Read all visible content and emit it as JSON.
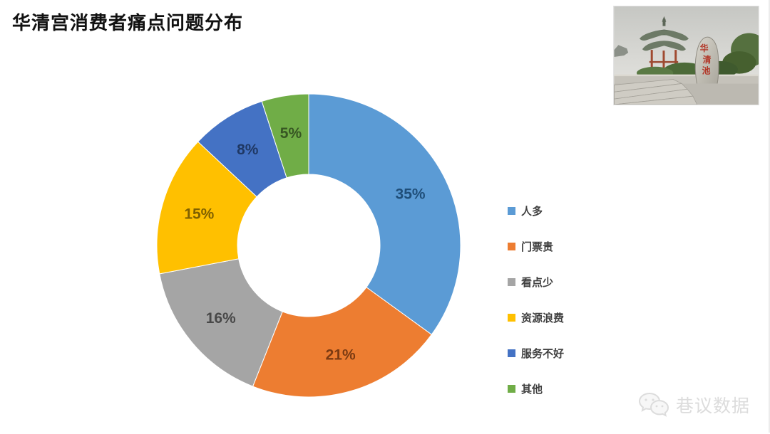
{
  "title": "华清宫消费者痛点问题分布",
  "chart_data": {
    "type": "pie",
    "subtype": "donut",
    "title": "华清宫消费者痛点问题分布",
    "categories": [
      "人多",
      "门票贵",
      "看点少",
      "资源浪费",
      "服务不好",
      "其他"
    ],
    "values": [
      35,
      21,
      16,
      15,
      8,
      5
    ],
    "labels": [
      "35%",
      "21%",
      "16%",
      "15%",
      "8%",
      "5%"
    ],
    "colors": [
      "#5B9BD5",
      "#ED7D31",
      "#A5A5A5",
      "#FFC000",
      "#4472C4",
      "#70AD47"
    ],
    "label_colors": [
      "#1F4E79",
      "#7B3A12",
      "#484848",
      "#7F6000",
      "#1F3864",
      "#375623"
    ],
    "start_angle_deg": 0,
    "direction": "clockwise",
    "inner_radius_ratio": 0.47,
    "legend_position": "right",
    "grid": false
  },
  "photo": {
    "alt": "华清池照片：凉亭与刻字石碑",
    "stone_chars": [
      "华",
      "清",
      "池"
    ]
  },
  "watermark": {
    "icon": "wechat-icon",
    "text": "巷议数据"
  }
}
